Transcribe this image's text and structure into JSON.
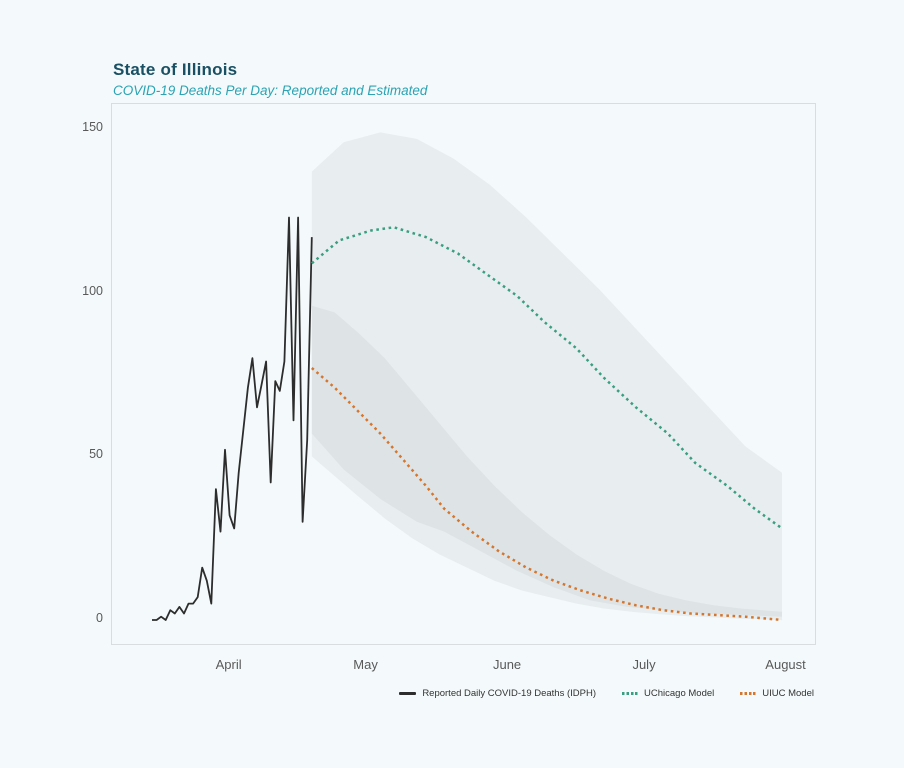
{
  "header": {
    "title": "State of Illinois",
    "subtitle": "COVID-19 Deaths Per Day: Reported and Estimated"
  },
  "colors": {
    "page_background": "#f4fafb",
    "title": "#1a5064",
    "subtitle": "#2ba3b4",
    "axis_text": "#595959",
    "plot_border": "#d9dde0",
    "reported_line": "#2d2d2d",
    "uchicago_line": "#3a9e80",
    "uiuc_line": "#d4762f",
    "confidence_band": "#b9bcc4"
  },
  "legend": {
    "items": [
      {
        "label": "Reported Daily COVID-19 Deaths (IDPH)",
        "swatch": "solid-black-line"
      },
      {
        "label": "UChicago Model",
        "swatch": "dotted-teal-line"
      },
      {
        "label": "UIUC Model",
        "swatch": "dotted-orange-line"
      }
    ]
  },
  "chart_data": {
    "type": "line",
    "title": "State of Illinois",
    "subtitle": "COVID-19 Deaths Per Day: Reported and Estimated",
    "xlabel": "",
    "ylabel": "",
    "ylim": [
      0,
      155
    ],
    "grid": false,
    "legend_position": "bottom-right",
    "y_ticks": [
      0,
      50,
      100,
      150
    ],
    "x_ticks": [
      {
        "label": "April",
        "day": 17
      },
      {
        "label": "May",
        "day": 47
      },
      {
        "label": "June",
        "day": 78
      },
      {
        "label": "July",
        "day": 108
      },
      {
        "label": "August",
        "day": 139
      }
    ],
    "band_fill": "#b9bcc4",
    "band_opacity": 0.2,
    "series": [
      {
        "name": "Reported Daily COVID-19 Deaths (IDPH)",
        "color": "#2d2d2d",
        "style": "solid",
        "start_day": 0,
        "values": [
          0,
          0,
          1,
          0,
          3,
          2,
          4,
          2,
          5,
          5,
          7,
          16,
          12,
          5,
          40,
          27,
          52,
          32,
          28,
          45,
          58,
          71,
          80,
          65,
          72,
          79,
          42,
          73,
          70,
          79,
          123,
          61,
          123,
          30,
          55,
          117
        ]
      },
      {
        "name": "UChicago Model",
        "color": "#3a9e80",
        "style": "dotted",
        "points": [
          [
            35,
            109
          ],
          [
            41,
            116
          ],
          [
            48,
            119
          ],
          [
            53,
            120
          ],
          [
            60,
            117
          ],
          [
            67,
            112
          ],
          [
            73,
            106
          ],
          [
            80,
            99
          ],
          [
            86,
            91
          ],
          [
            93,
            83
          ],
          [
            99,
            74
          ],
          [
            106,
            65
          ],
          [
            113,
            57
          ],
          [
            119,
            48
          ],
          [
            126,
            41
          ],
          [
            132,
            34
          ],
          [
            138,
            28
          ]
        ]
      },
      {
        "name": "UIUC Model",
        "color": "#d4762f",
        "style": "dotted",
        "points": [
          [
            35,
            77
          ],
          [
            40,
            71
          ],
          [
            45,
            64
          ],
          [
            50,
            57
          ],
          [
            55,
            49
          ],
          [
            60,
            41
          ],
          [
            64,
            34
          ],
          [
            70,
            27
          ],
          [
            76,
            21
          ],
          [
            82,
            16
          ],
          [
            88,
            12
          ],
          [
            94,
            9
          ],
          [
            100,
            6.5
          ],
          [
            106,
            4.5
          ],
          [
            112,
            3
          ],
          [
            118,
            2
          ],
          [
            124,
            1.5
          ],
          [
            130,
            1
          ],
          [
            138,
            0
          ]
        ]
      }
    ],
    "bands": [
      {
        "name": "uchicago-confidence-interval",
        "upper": [
          [
            35,
            137
          ],
          [
            42,
            146
          ],
          [
            50,
            149
          ],
          [
            58,
            147
          ],
          [
            66,
            141
          ],
          [
            74,
            133
          ],
          [
            82,
            123
          ],
          [
            90,
            112
          ],
          [
            98,
            101
          ],
          [
            106,
            89
          ],
          [
            114,
            77
          ],
          [
            122,
            65
          ],
          [
            130,
            53
          ],
          [
            138,
            45
          ]
        ],
        "lower": [
          [
            35,
            57
          ],
          [
            42,
            46
          ],
          [
            50,
            37
          ],
          [
            58,
            30
          ],
          [
            64,
            27
          ],
          [
            72,
            21
          ],
          [
            80,
            15
          ],
          [
            88,
            10
          ],
          [
            96,
            6
          ],
          [
            104,
            4
          ],
          [
            112,
            3
          ],
          [
            120,
            2
          ],
          [
            130,
            1.5
          ],
          [
            138,
            1
          ]
        ]
      },
      {
        "name": "uiuc-confidence-interval",
        "upper": [
          [
            35,
            96
          ],
          [
            40,
            94
          ],
          [
            45,
            88
          ],
          [
            51,
            80
          ],
          [
            57,
            70
          ],
          [
            63,
            60
          ],
          [
            69,
            50
          ],
          [
            75,
            41
          ],
          [
            81,
            33
          ],
          [
            87,
            26
          ],
          [
            93,
            20
          ],
          [
            99,
            15
          ],
          [
            105,
            11
          ],
          [
            111,
            8
          ],
          [
            117,
            6
          ],
          [
            123,
            4.5
          ],
          [
            129,
            3.5
          ],
          [
            138,
            2.5
          ]
        ],
        "lower": [
          [
            35,
            50
          ],
          [
            40,
            44
          ],
          [
            45,
            38
          ],
          [
            51,
            31
          ],
          [
            57,
            25
          ],
          [
            63,
            20
          ],
          [
            69,
            16
          ],
          [
            75,
            12
          ],
          [
            81,
            9
          ],
          [
            87,
            7
          ],
          [
            93,
            5
          ],
          [
            99,
            3.5
          ],
          [
            105,
            2.5
          ],
          [
            111,
            1.8
          ],
          [
            117,
            1.2
          ],
          [
            123,
            0.8
          ],
          [
            129,
            0.4
          ],
          [
            138,
            0
          ]
        ]
      }
    ]
  }
}
